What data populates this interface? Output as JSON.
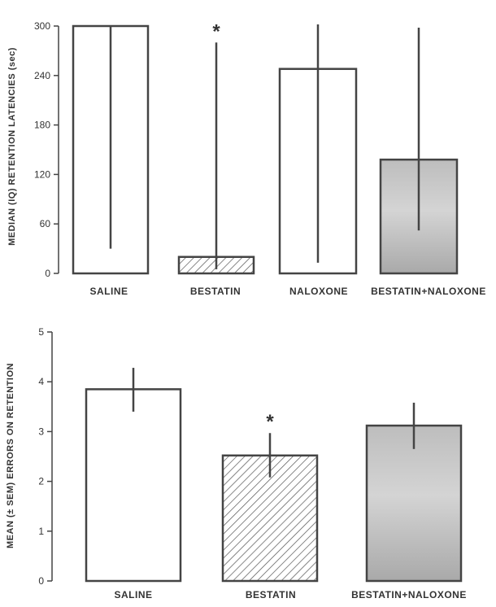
{
  "chart_data": [
    {
      "type": "bar",
      "ylabel": "MEDIAN (IQ) RETENTION LATENCIES (sec)",
      "ylim": [
        0,
        300
      ],
      "yticks": [
        "0",
        "60",
        "120",
        "180",
        "240",
        "300"
      ],
      "categories": [
        "SALINE",
        "BESTATIN",
        "NALOXONE",
        "BESTATIN+NALOXONE"
      ],
      "values": [
        300,
        20,
        248,
        138
      ],
      "error_low": [
        30,
        5,
        13,
        52
      ],
      "error_high": [
        300,
        280,
        302,
        298
      ],
      "fills": [
        "white",
        "hatched",
        "white",
        "gray"
      ],
      "annotations": [
        {
          "category": "BESTATIN",
          "text": "*"
        }
      ]
    },
    {
      "type": "bar",
      "ylabel": "MEAN (± SEM) ERRORS ON RETENTION",
      "ylim": [
        0,
        5
      ],
      "yticks": [
        "0",
        "1",
        "2",
        "3",
        "4",
        "5"
      ],
      "categories": [
        "SALINE",
        "BESTATIN",
        "BESTATIN+NALOXONE"
      ],
      "values": [
        3.85,
        2.52,
        3.12
      ],
      "error_low": [
        3.4,
        2.08,
        2.65
      ],
      "error_high": [
        4.28,
        2.97,
        3.58
      ],
      "fills": [
        "white",
        "hatched",
        "gray"
      ],
      "annotations": [
        {
          "category": "BESTATIN",
          "text": "*"
        }
      ]
    }
  ]
}
